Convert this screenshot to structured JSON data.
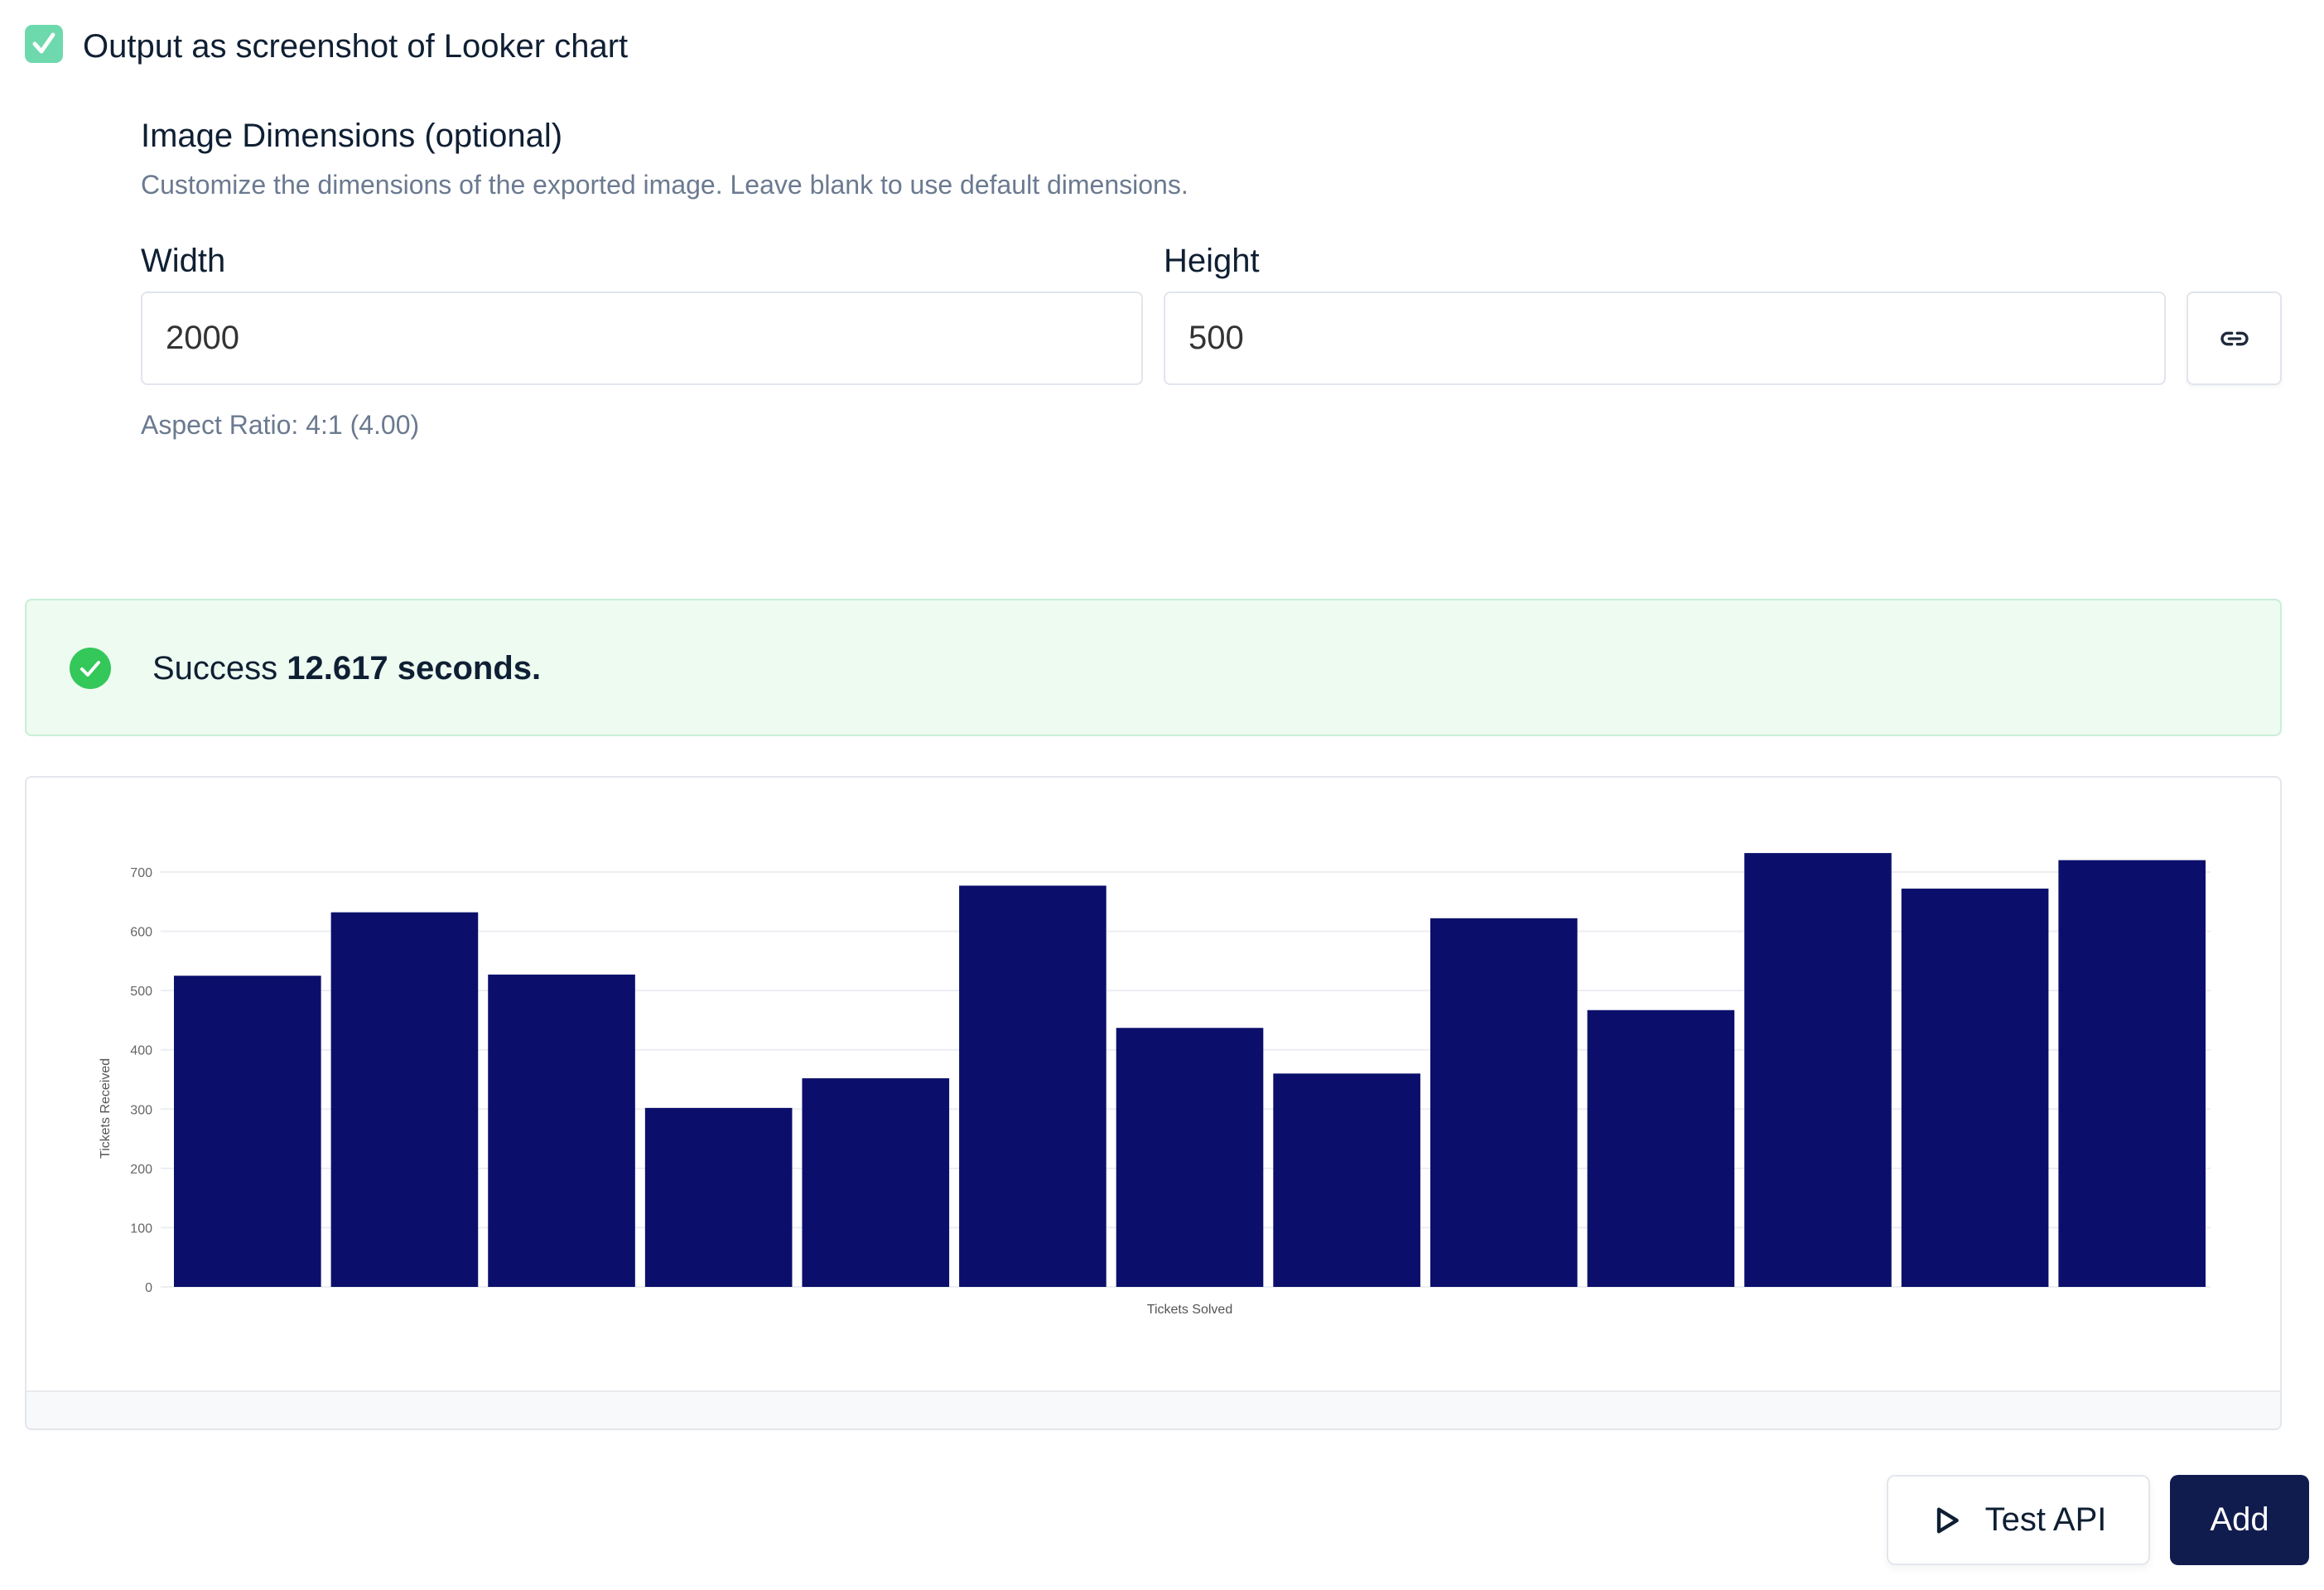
{
  "checkbox": {
    "label": "Output as screenshot of Looker chart",
    "checked": true,
    "color": "#6ed9ac"
  },
  "dimensions": {
    "title": "Image Dimensions (optional)",
    "description": "Customize the dimensions of the exported image. Leave blank to use default dimensions.",
    "width_label": "Width",
    "width_value": "2000",
    "height_label": "Height",
    "height_value": "500",
    "link_icon": "link-icon",
    "aspect_ratio": "Aspect Ratio: 4:1 (4.00)"
  },
  "status": {
    "prefix": "Success",
    "duration": "12.617 seconds.",
    "icon": "check-circle-icon",
    "color": "#34c759"
  },
  "chart_data": {
    "type": "bar",
    "xlabel": "Tickets Solved",
    "ylabel": "Tickets Received",
    "yticks": [
      0,
      100,
      200,
      300,
      400,
      500,
      600,
      700
    ],
    "ylim": [
      0,
      700
    ],
    "grid": true,
    "bar_color": "#0b0f6b",
    "values": [
      525,
      632,
      527,
      302,
      352,
      677,
      437,
      360,
      622,
      467,
      732,
      672,
      720
    ]
  },
  "actions": {
    "test_label": "Test API",
    "test_icon": "play-icon",
    "add_label": "Add",
    "add_color": "#111c4e"
  }
}
